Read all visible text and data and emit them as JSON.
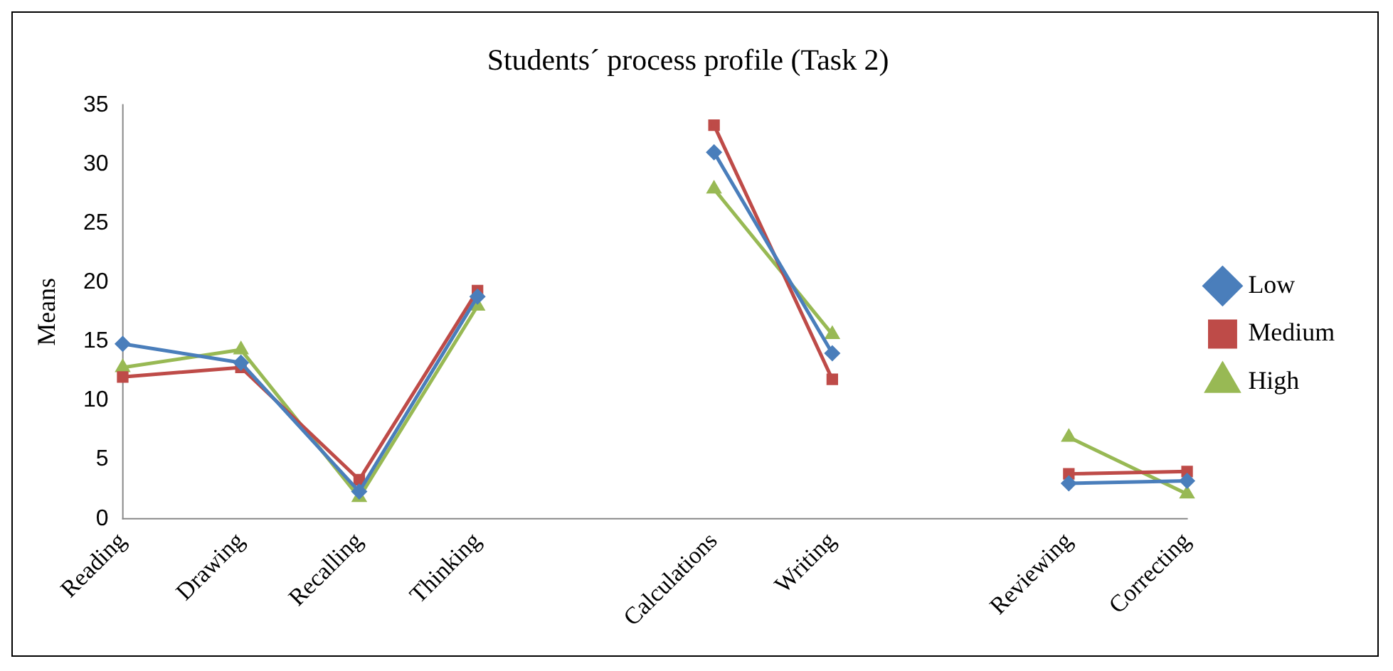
{
  "chart_data": {
    "type": "line",
    "title": "Students´ process profile (Task 2)",
    "ylabel": "Means",
    "categories": [
      "Reading",
      "Drawing",
      "Recalling",
      "Thinking",
      null,
      "Calculations",
      "Writing",
      null,
      "Reviewing",
      "Correcting"
    ],
    "series": [
      {
        "name": "Low",
        "color": "#4a7ebb",
        "marker": "diamond",
        "values": [
          14.8,
          13.2,
          2.3,
          18.8,
          null,
          31,
          14,
          null,
          3,
          3.2
        ]
      },
      {
        "name": "Medium",
        "color": "#be4b48",
        "marker": "square",
        "values": [
          12,
          12.8,
          3.3,
          19.3,
          null,
          33.3,
          11.8,
          null,
          3.8,
          4
        ]
      },
      {
        "name": "High",
        "color": "#98b954",
        "marker": "triangle",
        "values": [
          12.8,
          14.3,
          1.8,
          18,
          null,
          27.9,
          15.6,
          null,
          6.9,
          2.1
        ]
      }
    ],
    "ylim": [
      0,
      35
    ],
    "yticks": [
      0,
      5,
      10,
      15,
      20,
      25,
      30,
      35
    ],
    "grid": false,
    "legend": "right",
    "line_style": "solid"
  }
}
